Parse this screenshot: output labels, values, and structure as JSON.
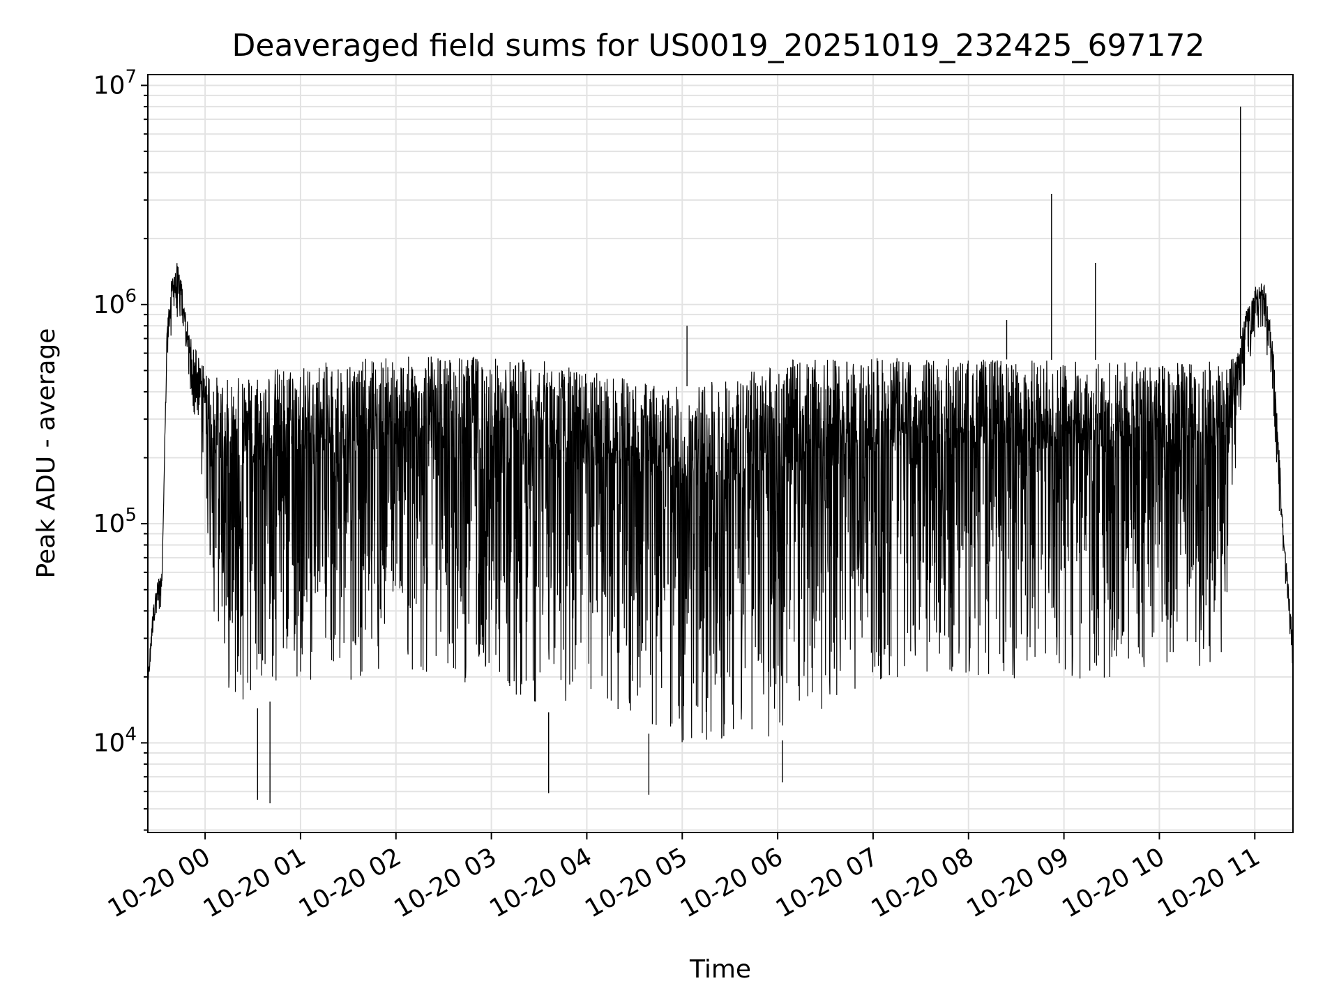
{
  "chart_data": {
    "type": "line",
    "title": "Deaveraged field sums for US0019_20251019_232425_697172",
    "xlabel": "Time",
    "ylabel": "Peak ADU - average",
    "yscale": "log",
    "ylim": [
      3900,
      11200000
    ],
    "xlim_hours": [
      -0.6,
      11.4
    ],
    "grid": true,
    "line_color": "#000000",
    "x_ticks": [
      {
        "hour": 0,
        "label": "10-20 00"
      },
      {
        "hour": 1,
        "label": "10-20 01"
      },
      {
        "hour": 2,
        "label": "10-20 02"
      },
      {
        "hour": 3,
        "label": "10-20 03"
      },
      {
        "hour": 4,
        "label": "10-20 04"
      },
      {
        "hour": 5,
        "label": "10-20 05"
      },
      {
        "hour": 6,
        "label": "10-20 06"
      },
      {
        "hour": 7,
        "label": "10-20 07"
      },
      {
        "hour": 8,
        "label": "10-20 08"
      },
      {
        "hour": 9,
        "label": "10-20 09"
      },
      {
        "hour": 10,
        "label": "10-20 10"
      },
      {
        "hour": 11,
        "label": "10-20 11"
      }
    ],
    "y_ticks": [
      {
        "value": 10000,
        "base": "10",
        "exp": "4"
      },
      {
        "value": 100000,
        "base": "10",
        "exp": "5"
      },
      {
        "value": 1000000,
        "base": "10",
        "exp": "6"
      },
      {
        "value": 10000000,
        "base": "10",
        "exp": "7"
      }
    ],
    "envelope": {
      "hours": [
        -0.6,
        -0.55,
        -0.5,
        -0.45,
        -0.42,
        -0.4,
        -0.35,
        -0.3,
        -0.25,
        -0.2,
        -0.15,
        -0.1,
        -0.05,
        0.0,
        0.05,
        0.1,
        0.2,
        0.3,
        0.5,
        0.75,
        1.0,
        1.5,
        2.0,
        2.5,
        3.0,
        3.5,
        4.0,
        4.5,
        5.0,
        5.5,
        6.0,
        6.5,
        7.0,
        7.5,
        8.0,
        8.5,
        9.0,
        9.5,
        10.0,
        10.5,
        10.75,
        10.82,
        10.9,
        11.0,
        11.1,
        11.15,
        11.2,
        11.25,
        11.3,
        11.35,
        11.4
      ],
      "upper": [
        20000,
        40000,
        55000,
        60000,
        300000,
        800000,
        1300000,
        1600000,
        1300000,
        900000,
        700000,
        650000,
        550000,
        520000,
        500000,
        480000,
        450000,
        470000,
        500000,
        520000,
        530000,
        560000,
        580000,
        580000,
        580000,
        560000,
        500000,
        450000,
        420000,
        460000,
        560000,
        560000,
        570000,
        570000,
        570000,
        560000,
        560000,
        560000,
        540000,
        560000,
        560000,
        600000,
        900000,
        1200000,
        1300000,
        900000,
        600000,
        250000,
        90000,
        55000,
        30000
      ],
      "lower": [
        15000,
        30000,
        35000,
        40000,
        200000,
        500000,
        700000,
        900000,
        700000,
        500000,
        350000,
        250000,
        180000,
        120000,
        60000,
        30000,
        18000,
        15000,
        14000,
        16000,
        18000,
        18000,
        18000,
        18000,
        17000,
        14000,
        13000,
        12000,
        9000,
        9000,
        10000,
        13000,
        17000,
        18000,
        19000,
        18000,
        18000,
        18000,
        18000,
        20000,
        25000,
        250000,
        400000,
        700000,
        700000,
        500000,
        300000,
        120000,
        60000,
        40000,
        20000
      ]
    },
    "annotations": [
      {
        "hour": 10.85,
        "value": 8000000,
        "description": "highest spike"
      },
      {
        "hour": 8.87,
        "value": 3200000,
        "description": "spike"
      },
      {
        "hour": 9.33,
        "value": 1550000,
        "description": "spike"
      },
      {
        "hour": 5.05,
        "value": 800000,
        "description": "spike"
      },
      {
        "hour": 8.4,
        "value": 850000,
        "description": "spike"
      },
      {
        "hour": 0.55,
        "value": 5500,
        "description": "dip"
      },
      {
        "hour": 0.68,
        "value": 5300,
        "description": "dip"
      },
      {
        "hour": 3.6,
        "value": 5900,
        "description": "dip"
      },
      {
        "hour": 4.65,
        "value": 5800,
        "description": "dip"
      },
      {
        "hour": 6.05,
        "value": 6600,
        "description": "dip"
      }
    ]
  }
}
